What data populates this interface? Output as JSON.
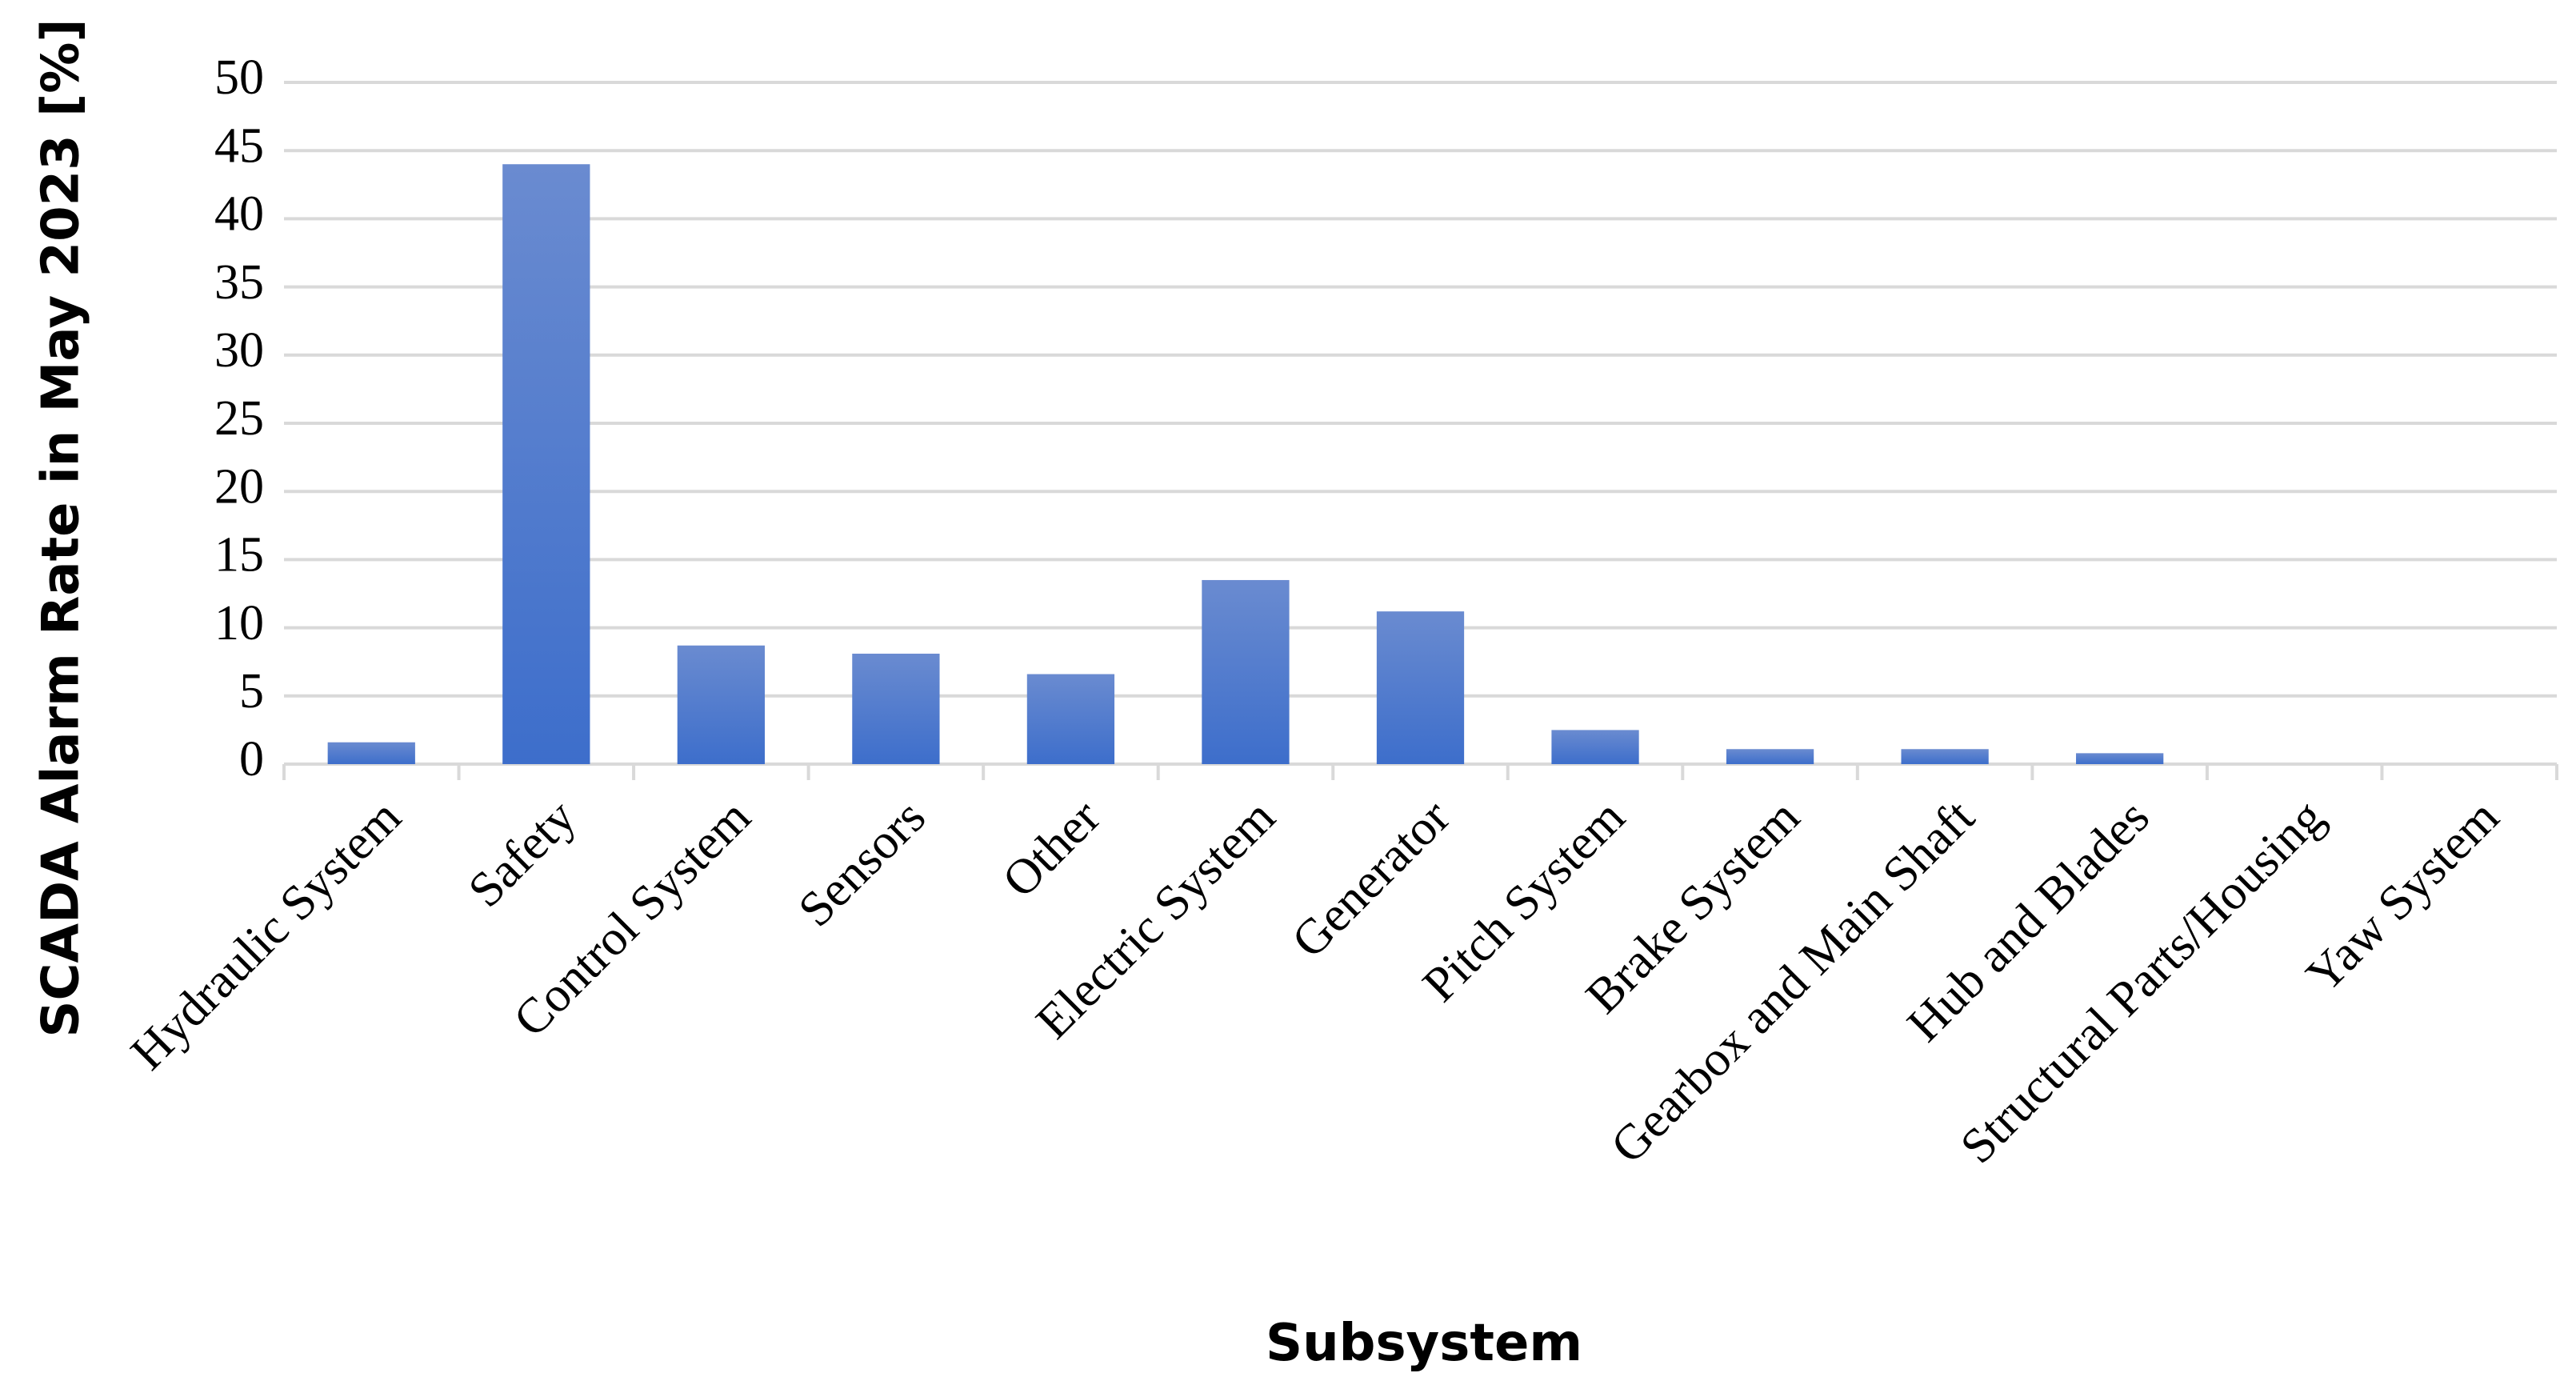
{
  "chart_data": {
    "type": "bar",
    "x_label": "Subsystem",
    "y_label": "SCADA Alarm Rate in May 2023 [%]",
    "categories": [
      "Hydraulic System",
      "Safety",
      "Control System",
      "Sensors",
      "Other",
      "Electric System",
      "Generator",
      "Pitch System",
      "Brake System",
      "Gearbox and Main Shaft",
      "Hub and Blades",
      "Structural Parts/Housing",
      "Yaw System"
    ],
    "values": [
      1.6,
      44.0,
      8.7,
      8.1,
      6.6,
      13.5,
      11.2,
      2.5,
      1.1,
      1.1,
      0.8,
      0,
      0
    ],
    "color": "#4472c4",
    "ylim": [
      0,
      50
    ],
    "yticks": [
      0,
      5,
      10,
      15,
      20,
      25,
      30,
      35,
      40,
      45,
      50
    ],
    "grid": true
  }
}
